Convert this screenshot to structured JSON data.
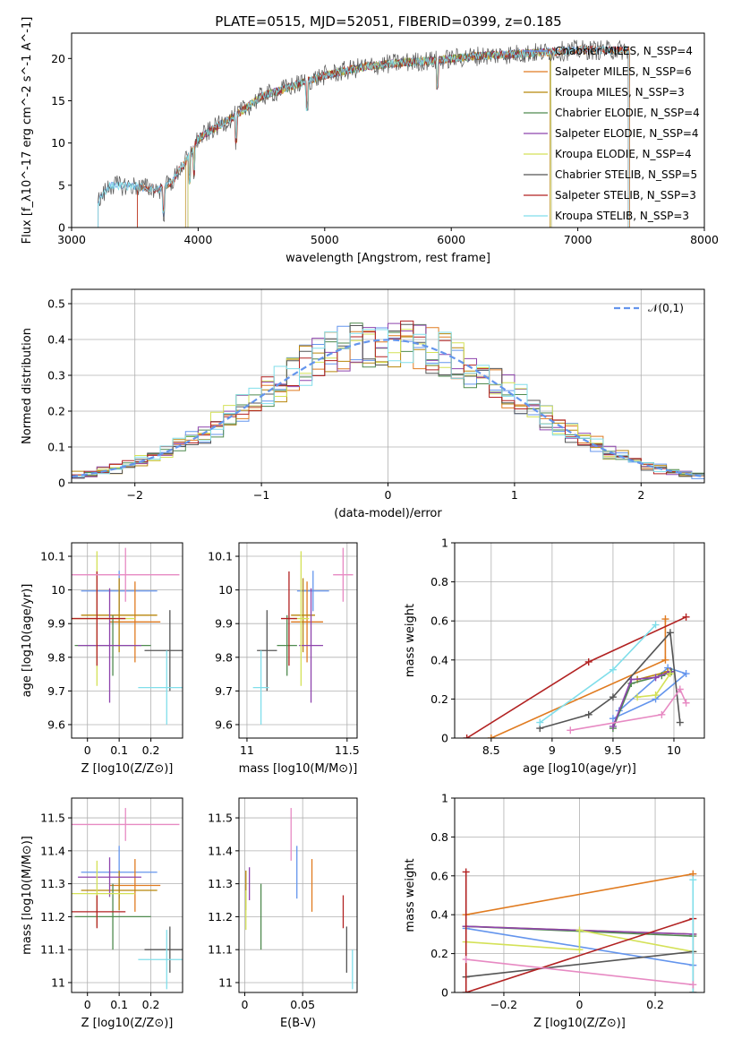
{
  "figure": {
    "title": "PLATE=0515, MJD=52051, FIBERID=0399, z=0.185"
  },
  "chart_data": [
    {
      "id": "spectrum",
      "type": "line",
      "xlabel": "wavelength [Angstrom, rest frame]",
      "ylabel": "Flux [f_λ10^-17 erg cm^-2 s^-1 A^-1]",
      "xlim": [
        3000,
        8000
      ],
      "ylim": [
        0,
        23
      ],
      "xticks": [
        3000,
        4000,
        5000,
        6000,
        7000,
        8000
      ],
      "yticks": [
        0,
        5,
        10,
        15,
        20
      ],
      "legend_position": "upper-right",
      "series": [
        {
          "name": "Chabrier MILES, N_SSP=4",
          "color": "#6495ed",
          "start": 3210,
          "end": 7410
        },
        {
          "name": "Salpeter MILES, N_SSP=6",
          "color": "#e07b20",
          "start": 3520,
          "end": 7410
        },
        {
          "name": "Kroupa MILES, N_SSP=3",
          "color": "#b8860b",
          "start": 3900,
          "end": 6780
        },
        {
          "name": "Chabrier ELODIE, N_SSP=4",
          "color": "#4f8a4f",
          "start": 3920,
          "end": 6790
        },
        {
          "name": "Salpeter ELODIE, N_SSP=4",
          "color": "#8e44ad",
          "start": 3920,
          "end": 6790
        },
        {
          "name": "Kroupa ELODIE, N_SSP=4",
          "color": "#d4e157",
          "start": 3920,
          "end": 6790
        },
        {
          "name": "Chabrier STELIB, N_SSP=5",
          "color": "#555555",
          "start": 3210,
          "end": 7400
        },
        {
          "name": "Salpeter STELIB, N_SSP=3",
          "color": "#b22222",
          "start": 3520,
          "end": 7400
        },
        {
          "name": "Kroupa STELIB, N_SSP=3",
          "color": "#80deea",
          "start": 3210,
          "end": 7400
        }
      ],
      "profile": {
        "x": [
          3210,
          3300,
          3500,
          3700,
          3800,
          3850,
          3900,
          3950,
          4000,
          4100,
          4300,
          4500,
          4800,
          5000,
          5300,
          5600,
          5900,
          6200,
          6600,
          7000,
          7410
        ],
        "y": [
          3.0,
          5.0,
          4.9,
          4.5,
          5.5,
          6.8,
          7.8,
          9.0,
          10.5,
          11.5,
          13.3,
          15.5,
          17.0,
          18.0,
          19.0,
          19.5,
          19.8,
          20.3,
          20.6,
          21.0,
          21.0
        ]
      }
    },
    {
      "id": "residual-histogram",
      "type": "histogram",
      "xlabel": "(data-model)/error",
      "ylabel": "Normed distribution",
      "xlim": [
        -2.5,
        2.5
      ],
      "ylim": [
        0,
        0.54
      ],
      "xticks": [
        -2,
        -1,
        0,
        1,
        2
      ],
      "yticks": [
        0.0,
        0.1,
        0.2,
        0.3,
        0.4,
        0.5
      ],
      "bin_width": 0.1,
      "grid": true,
      "legend": {
        "label": "𝒩(0,1)",
        "position": "upper-right",
        "color": "#6495ed"
      },
      "series_colors": [
        "#6495ed",
        "#e07b20",
        "#b8860b",
        "#4f8a4f",
        "#8e44ad",
        "#d4e157",
        "#555555",
        "#b22222",
        "#80deea"
      ]
    },
    {
      "id": "age-vs-Z",
      "type": "errorbar",
      "xlabel": "Z [log10(Z/Z⊙)]",
      "ylabel": "age [log10(age/yr)]",
      "xlim": [
        -0.05,
        0.3
      ],
      "ylim": [
        9.56,
        10.14
      ],
      "xticks": [
        0.0,
        0.1,
        0.2
      ],
      "yticks": [
        9.6,
        9.7,
        9.8,
        9.9,
        10.0,
        10.1
      ],
      "grid": true,
      "points": [
        {
          "x": 0.1,
          "xerr": 0.12,
          "y": 9.997,
          "yerr": 0.06,
          "color": "#6495ed"
        },
        {
          "x": 0.15,
          "xerr": 0.08,
          "y": 9.905,
          "yerr": 0.12,
          "color": "#e07b20"
        },
        {
          "x": 0.1,
          "xerr": 0.12,
          "y": 9.925,
          "yerr": 0.11,
          "color": "#b8860b"
        },
        {
          "x": 0.08,
          "xerr": 0.12,
          "y": 9.835,
          "yerr": 0.09,
          "color": "#4f8a4f"
        },
        {
          "x": 0.07,
          "xerr": 0.1,
          "y": 9.835,
          "yerr": 0.17,
          "color": "#8e44ad"
        },
        {
          "x": 0.03,
          "xerr": 0.12,
          "y": 9.915,
          "yerr": 0.2,
          "color": "#d4e157"
        },
        {
          "x": 0.26,
          "xerr": 0.08,
          "y": 9.82,
          "yerr": 0.12,
          "color": "#555555"
        },
        {
          "x": 0.03,
          "xerr": 0.09,
          "y": 9.915,
          "yerr": 0.14,
          "color": "#b22222"
        },
        {
          "x": 0.25,
          "xerr": 0.09,
          "y": 9.71,
          "yerr": 0.11,
          "color": "#80deea"
        },
        {
          "x": 0.12,
          "xerr": 0.17,
          "y": 10.045,
          "yerr": 0.08,
          "color": "#e78ac3"
        }
      ]
    },
    {
      "id": "age-vs-mass",
      "type": "errorbar",
      "xlabel": "mass [log10(M/M⊙)]",
      "ylabel": "",
      "xlim": [
        10.96,
        11.55
      ],
      "ylim": [
        9.56,
        10.14
      ],
      "xticks": [
        11.0,
        11.5
      ],
      "yticks": [
        9.6,
        9.7,
        9.8,
        9.9,
        10.0,
        10.1
      ],
      "grid": true,
      "points": [
        {
          "x": 11.33,
          "xerr": 0.08,
          "y": 9.997,
          "yerr": 0.06,
          "color": "#6495ed"
        },
        {
          "x": 11.3,
          "xerr": 0.08,
          "y": 9.905,
          "yerr": 0.12,
          "color": "#e07b20"
        },
        {
          "x": 11.28,
          "xerr": 0.06,
          "y": 9.925,
          "yerr": 0.11,
          "color": "#b8860b"
        },
        {
          "x": 11.2,
          "xerr": 0.05,
          "y": 9.835,
          "yerr": 0.09,
          "color": "#4f8a4f"
        },
        {
          "x": 11.32,
          "xerr": 0.06,
          "y": 9.835,
          "yerr": 0.17,
          "color": "#8e44ad"
        },
        {
          "x": 11.27,
          "xerr": 0.04,
          "y": 9.915,
          "yerr": 0.2,
          "color": "#d4e157"
        },
        {
          "x": 11.1,
          "xerr": 0.05,
          "y": 9.82,
          "yerr": 0.12,
          "color": "#555555"
        },
        {
          "x": 11.21,
          "xerr": 0.04,
          "y": 9.915,
          "yerr": 0.14,
          "color": "#b22222"
        },
        {
          "x": 11.07,
          "xerr": 0.04,
          "y": 9.71,
          "yerr": 0.11,
          "color": "#80deea"
        },
        {
          "x": 11.48,
          "xerr": 0.05,
          "y": 10.045,
          "yerr": 0.08,
          "color": "#e78ac3"
        }
      ]
    },
    {
      "id": "mass-weight-vs-age",
      "type": "line",
      "xlabel": "age [log10(age/yr)]",
      "ylabel": "mass weight",
      "xlim": [
        8.2,
        10.25
      ],
      "ylim": [
        0,
        1
      ],
      "xticks": [
        8.5,
        9.0,
        9.5,
        10.0
      ],
      "yticks": [
        0.0,
        0.2,
        0.4,
        0.6,
        0.8,
        1.0
      ],
      "grid": true,
      "series": [
        {
          "color": "#6495ed",
          "x": [
            9.55,
            9.95,
            10.1,
            9.85,
            9.5
          ],
          "y": [
            0.14,
            0.36,
            0.33,
            0.2,
            0.1
          ]
        },
        {
          "color": "#e07b20",
          "x": [
            8.5,
            9.93,
            9.93
          ],
          "y": [
            0.0,
            0.4,
            0.61
          ]
        },
        {
          "color": "#b8860b",
          "x": [
            9.7,
            9.95
          ],
          "y": [
            0.3,
            0.34
          ]
        },
        {
          "color": "#4f8a4f",
          "x": [
            9.5,
            9.65,
            9.9,
            9.98
          ],
          "y": [
            0.05,
            0.28,
            0.32,
            0.34
          ]
        },
        {
          "color": "#8e44ad",
          "x": [
            9.5,
            9.65,
            9.85,
            9.97
          ],
          "y": [
            0.06,
            0.3,
            0.31,
            0.34
          ]
        },
        {
          "color": "#d4e157",
          "x": [
            9.7,
            9.85,
            9.97
          ],
          "y": [
            0.21,
            0.22,
            0.33
          ]
        },
        {
          "color": "#555555",
          "x": [
            8.9,
            9.3,
            9.5,
            9.97,
            10.05
          ],
          "y": [
            0.05,
            0.12,
            0.21,
            0.54,
            0.08
          ]
        },
        {
          "color": "#b22222",
          "x": [
            8.3,
            9.3,
            10.1
          ],
          "y": [
            0.0,
            0.39,
            0.62
          ]
        },
        {
          "color": "#80deea",
          "x": [
            8.9,
            9.5,
            9.85
          ],
          "y": [
            0.08,
            0.35,
            0.58
          ]
        },
        {
          "color": "#e78ac3",
          "x": [
            9.15,
            9.9,
            10.05,
            10.1
          ],
          "y": [
            0.04,
            0.12,
            0.25,
            0.18
          ]
        }
      ]
    },
    {
      "id": "mass-vs-Z",
      "type": "errorbar",
      "xlabel": "Z [log10(Z/Z⊙)]",
      "ylabel": "mass [log10(M/M⊙)]",
      "xlim": [
        -0.05,
        0.3
      ],
      "ylim": [
        10.97,
        11.56
      ],
      "xticks": [
        0.0,
        0.1,
        0.2
      ],
      "yticks": [
        11.0,
        11.1,
        11.2,
        11.3,
        11.4,
        11.5
      ],
      "grid": true,
      "points": [
        {
          "x": 0.1,
          "xerr": 0.12,
          "y": 11.335,
          "yerr": 0.08,
          "color": "#6495ed"
        },
        {
          "x": 0.15,
          "xerr": 0.08,
          "y": 11.295,
          "yerr": 0.08,
          "color": "#e07b20"
        },
        {
          "x": 0.1,
          "xerr": 0.12,
          "y": 11.28,
          "yerr": 0.06,
          "color": "#b8860b"
        },
        {
          "x": 0.08,
          "xerr": 0.12,
          "y": 11.2,
          "yerr": 0.1,
          "color": "#4f8a4f"
        },
        {
          "x": 0.07,
          "xerr": 0.1,
          "y": 11.32,
          "yerr": 0.06,
          "color": "#8e44ad"
        },
        {
          "x": 0.03,
          "xerr": 0.12,
          "y": 11.27,
          "yerr": 0.1,
          "color": "#d4e157"
        },
        {
          "x": 0.26,
          "xerr": 0.08,
          "y": 11.1,
          "yerr": 0.07,
          "color": "#555555"
        },
        {
          "x": 0.03,
          "xerr": 0.09,
          "y": 11.215,
          "yerr": 0.05,
          "color": "#b22222"
        },
        {
          "x": 0.25,
          "xerr": 0.09,
          "y": 11.07,
          "yerr": 0.09,
          "color": "#80deea"
        },
        {
          "x": 0.12,
          "xerr": 0.17,
          "y": 11.48,
          "yerr": 0.05,
          "color": "#e78ac3"
        }
      ]
    },
    {
      "id": "mass-vs-ebv",
      "type": "errorbar",
      "xlabel": "E(B-V)",
      "ylabel": "",
      "xlim": [
        -0.005,
        0.097
      ],
      "ylim": [
        10.97,
        11.56
      ],
      "xticks": [
        0.0,
        0.05
      ],
      "yticks": [
        11.0,
        11.1,
        11.2,
        11.3,
        11.4,
        11.5
      ],
      "grid": true,
      "points": [
        {
          "x": 0.045,
          "y": 11.335,
          "yerr": 0.08,
          "color": "#6495ed"
        },
        {
          "x": 0.058,
          "y": 11.295,
          "yerr": 0.08,
          "color": "#e07b20"
        },
        {
          "x": 0.001,
          "y": 11.28,
          "yerr": 0.06,
          "color": "#b8860b"
        },
        {
          "x": 0.014,
          "y": 11.2,
          "yerr": 0.1,
          "color": "#4f8a4f"
        },
        {
          "x": 0.004,
          "y": 11.3,
          "yerr": 0.05,
          "color": "#8e44ad"
        },
        {
          "x": 0.001,
          "y": 11.22,
          "yerr": 0.06,
          "color": "#d4e157"
        },
        {
          "x": 0.088,
          "y": 11.1,
          "yerr": 0.07,
          "color": "#555555"
        },
        {
          "x": 0.085,
          "y": 11.215,
          "yerr": 0.05,
          "color": "#b22222"
        },
        {
          "x": 0.093,
          "y": 11.04,
          "yerr": 0.06,
          "color": "#80deea"
        },
        {
          "x": 0.04,
          "y": 11.45,
          "yerr": 0.08,
          "color": "#e78ac3"
        }
      ]
    },
    {
      "id": "mass-weight-vs-Z",
      "type": "line",
      "xlabel": "Z [log10(Z/Z⊙)]",
      "ylabel": "mass weight",
      "xlim": [
        -0.33,
        0.33
      ],
      "ylim": [
        0,
        1
      ],
      "xticks": [
        -0.2,
        0.0,
        0.2
      ],
      "yticks": [
        0.0,
        0.2,
        0.4,
        0.6,
        0.8,
        1.0
      ],
      "grid": true,
      "series": [
        {
          "color": "#6495ed",
          "x": [
            -0.3,
            0.3
          ],
          "y": [
            0.33,
            0.14
          ]
        },
        {
          "color": "#e07b20",
          "x": [
            -0.3,
            0.3
          ],
          "y": [
            0.4,
            0.61
          ]
        },
        {
          "color": "#b8860b",
          "x": [
            -0.3,
            0.3
          ],
          "y": [
            0.34,
            0.3
          ]
        },
        {
          "color": "#4f8a4f",
          "x": [
            -0.3,
            0.3
          ],
          "y": [
            0.34,
            0.29
          ]
        },
        {
          "color": "#8e44ad",
          "x": [
            -0.3,
            0.3
          ],
          "y": [
            0.34,
            0.3
          ]
        },
        {
          "color": "#d4e157",
          "x": [
            -0.3,
            0.0,
            0.0,
            0.3
          ],
          "y": [
            0.26,
            0.22,
            0.32,
            0.21
          ]
        },
        {
          "color": "#555555",
          "x": [
            -0.3,
            0.3
          ],
          "y": [
            0.08,
            0.21
          ]
        },
        {
          "color": "#b22222",
          "x": [
            -0.3,
            -0.3,
            0.3,
            0.3
          ],
          "y": [
            0.62,
            0.0,
            0.38,
            0.0
          ]
        },
        {
          "color": "#80deea",
          "x": [
            0.3,
            0.3
          ],
          "y": [
            0.0,
            0.58
          ]
        },
        {
          "color": "#e78ac3",
          "x": [
            -0.3,
            0.3
          ],
          "y": [
            0.17,
            0.04
          ]
        }
      ]
    }
  ]
}
